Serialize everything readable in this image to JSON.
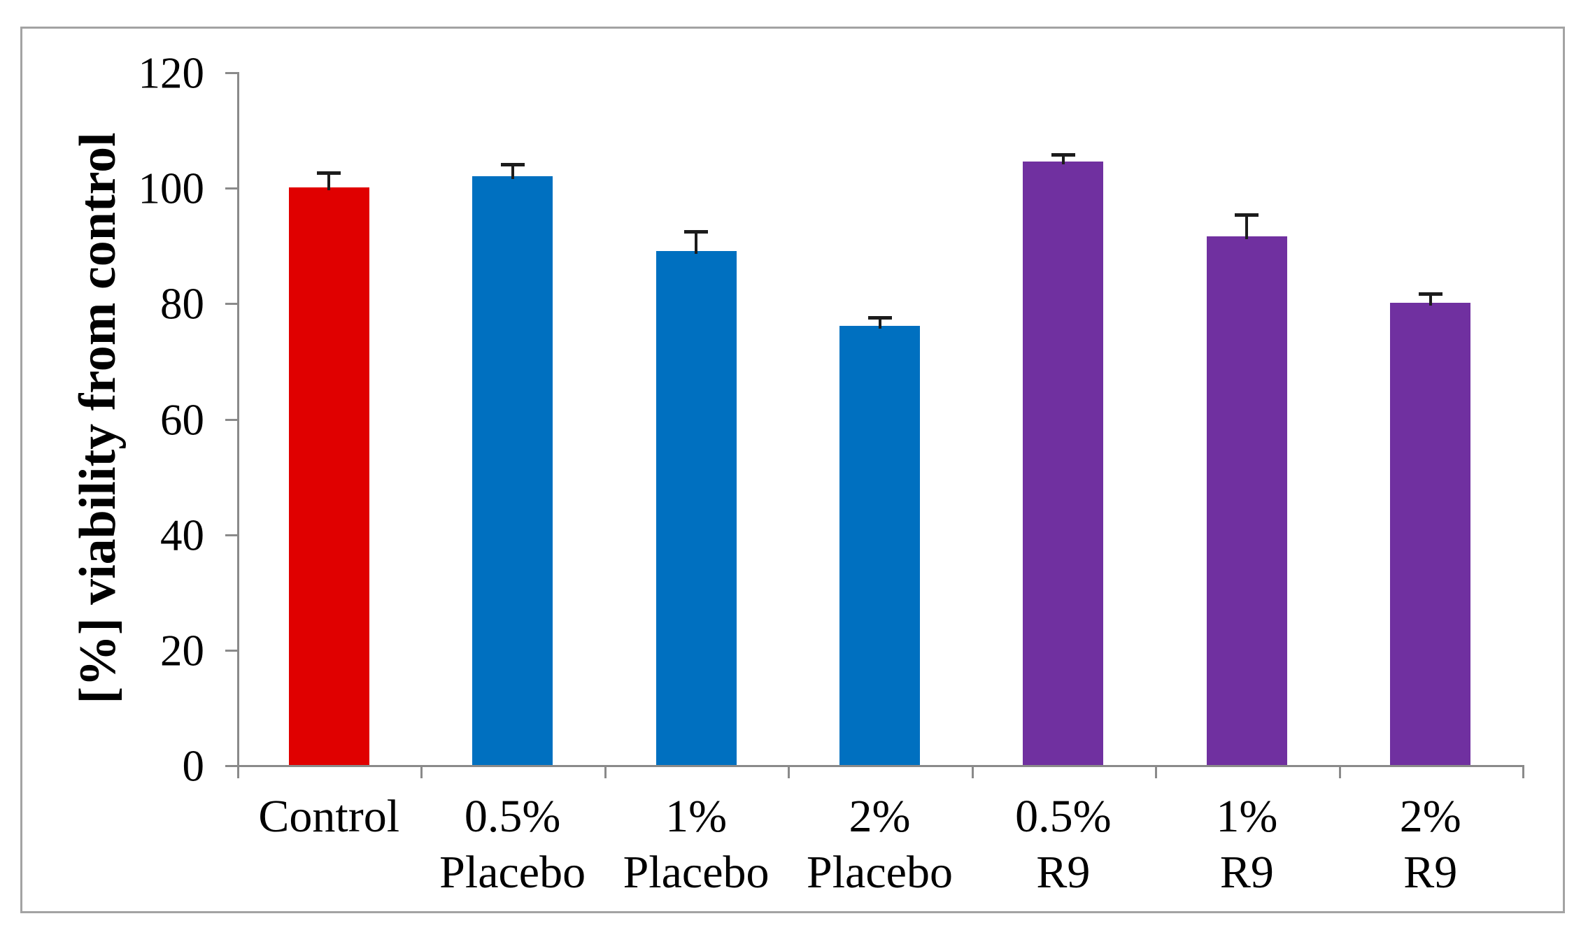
{
  "chart_data": {
    "type": "bar",
    "title": "",
    "ylabel": "[%] viability from control",
    "xlabel": "",
    "ylim": [
      0,
      120
    ],
    "yticks": [
      0,
      20,
      40,
      60,
      80,
      100,
      120
    ],
    "categories": [
      "Control",
      "0.5%\nPlacebo",
      "1%\nPlacebo",
      "2%\nPlacebo",
      "0.5%\nR9",
      "1%\nR9",
      "2%\nR9"
    ],
    "values": [
      100,
      102,
      89,
      76,
      104.5,
      91.5,
      80
    ],
    "errors": [
      2.8,
      2.2,
      3.6,
      1.7,
      1.5,
      4.0,
      1.8
    ],
    "bar_colors": [
      "#e00000",
      "#0070c0",
      "#0070c0",
      "#0070c0",
      "#7030a0",
      "#7030a0",
      "#7030a0"
    ],
    "series_groups": [
      {
        "name": "Control",
        "color": "#e00000"
      },
      {
        "name": "Placebo",
        "color": "#0070c0"
      },
      {
        "name": "R9",
        "color": "#7030a0"
      }
    ],
    "grid": false,
    "legend": false,
    "axis_color": "#8a8a8a",
    "frame_color": "#a3a3a3",
    "error_bar_color": "#1c1c1c"
  }
}
